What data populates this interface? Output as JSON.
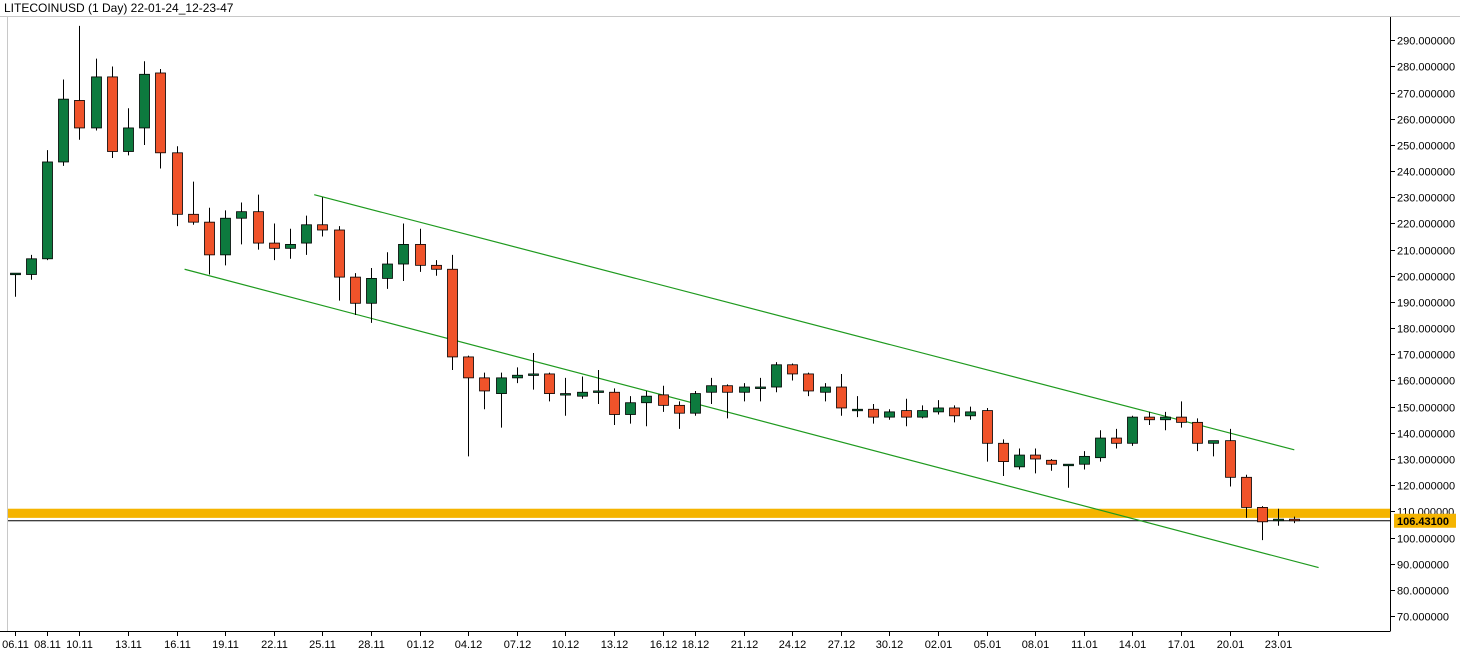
{
  "window": {
    "title": "LITECOINUSD (1 Day) 22-01-24_12-23-47"
  },
  "colors": {
    "up": "#0d7a3e",
    "down": "#f0532a",
    "channel": "#1e9a1e",
    "highlight_band": "#f5b400",
    "axis": "#000000",
    "background": "#ffffff"
  },
  "chart_data": {
    "type": "candlestick",
    "title": "LITECOINUSD (1 Day) 22-01-24_12-23-47",
    "ylim": [
      63,
      304
    ],
    "y_ticks": [
      70,
      80,
      90,
      100,
      110,
      120,
      130,
      140,
      150,
      160,
      170,
      180,
      190,
      200,
      210,
      220,
      230,
      240,
      250,
      260,
      270,
      280,
      290
    ],
    "y_tick_labels": [
      "70.000000",
      "80.000000",
      "90.000000",
      "100.000000",
      "110.000000",
      "120.000000",
      "130.000000",
      "140.000000",
      "150.000000",
      "160.000000",
      "170.000000",
      "180.000000",
      "190.000000",
      "200.000000",
      "210.000000",
      "220.000000",
      "230.000000",
      "240.000000",
      "250.000000",
      "260.000000",
      "270.000000",
      "280.000000",
      "290.000000"
    ],
    "x_labels": [
      {
        "i": 0,
        "text": "06.11"
      },
      {
        "i": 2,
        "text": "08.11"
      },
      {
        "i": 4,
        "text": "10.11"
      },
      {
        "i": 7,
        "text": "13.11"
      },
      {
        "i": 10,
        "text": "16.11"
      },
      {
        "i": 13,
        "text": "19.11"
      },
      {
        "i": 16,
        "text": "22.11"
      },
      {
        "i": 19,
        "text": "25.11"
      },
      {
        "i": 22,
        "text": "28.11"
      },
      {
        "i": 25,
        "text": "01.12"
      },
      {
        "i": 28,
        "text": "04.12"
      },
      {
        "i": 31,
        "text": "07.12"
      },
      {
        "i": 34,
        "text": "10.12"
      },
      {
        "i": 37,
        "text": "13.12"
      },
      {
        "i": 40,
        "text": "16.12"
      },
      {
        "i": 42,
        "text": "18.12"
      },
      {
        "i": 45,
        "text": "21.12"
      },
      {
        "i": 48,
        "text": "24.12"
      },
      {
        "i": 51,
        "text": "27.12"
      },
      {
        "i": 54,
        "text": "30.12"
      },
      {
        "i": 57,
        "text": "02.01"
      },
      {
        "i": 60,
        "text": "05.01"
      },
      {
        "i": 63,
        "text": "08.01"
      },
      {
        "i": 66,
        "text": "11.01"
      },
      {
        "i": 69,
        "text": "14.01"
      },
      {
        "i": 72,
        "text": "17.01"
      },
      {
        "i": 75,
        "text": "20.01"
      },
      {
        "i": 78,
        "text": "23.01"
      }
    ],
    "candles": [
      {
        "o": 200.5,
        "h": 201.0,
        "l": 192.0,
        "c": 201.0
      },
      {
        "o": 200.5,
        "h": 208.0,
        "l": 198.5,
        "c": 206.5
      },
      {
        "o": 206.5,
        "h": 248.0,
        "l": 206.0,
        "c": 243.5
      },
      {
        "o": 243.5,
        "h": 275.0,
        "l": 242.0,
        "c": 267.5
      },
      {
        "o": 267.0,
        "h": 295.5,
        "l": 252.0,
        "c": 256.5
      },
      {
        "o": 256.5,
        "h": 283.0,
        "l": 255.5,
        "c": 276.0
      },
      {
        "o": 276.0,
        "h": 280.0,
        "l": 245.0,
        "c": 247.5
      },
      {
        "o": 247.5,
        "h": 264.0,
        "l": 246.0,
        "c": 256.5
      },
      {
        "o": 256.5,
        "h": 282.0,
        "l": 250.0,
        "c": 277.0
      },
      {
        "o": 277.5,
        "h": 279.0,
        "l": 241.0,
        "c": 247.0
      },
      {
        "o": 247.0,
        "h": 249.5,
        "l": 219.0,
        "c": 223.5
      },
      {
        "o": 223.5,
        "h": 236.0,
        "l": 219.5,
        "c": 220.5
      },
      {
        "o": 220.5,
        "h": 226.0,
        "l": 200.5,
        "c": 208.0
      },
      {
        "o": 208.0,
        "h": 225.0,
        "l": 204.0,
        "c": 222.0
      },
      {
        "o": 222.0,
        "h": 228.0,
        "l": 212.0,
        "c": 224.5
      },
      {
        "o": 224.5,
        "h": 231.0,
        "l": 210.0,
        "c": 212.5
      },
      {
        "o": 212.5,
        "h": 220.0,
        "l": 206.0,
        "c": 210.5
      },
      {
        "o": 210.5,
        "h": 218.0,
        "l": 206.5,
        "c": 212.0
      },
      {
        "o": 212.5,
        "h": 223.0,
        "l": 208.0,
        "c": 219.5
      },
      {
        "o": 219.5,
        "h": 230.0,
        "l": 215.0,
        "c": 217.5
      },
      {
        "o": 217.5,
        "h": 219.0,
        "l": 190.5,
        "c": 199.5
      },
      {
        "o": 199.5,
        "h": 201.0,
        "l": 185.0,
        "c": 189.5
      },
      {
        "o": 189.5,
        "h": 203.0,
        "l": 182.0,
        "c": 199.0
      },
      {
        "o": 199.0,
        "h": 209.0,
        "l": 195.0,
        "c": 204.5
      },
      {
        "o": 204.5,
        "h": 220.0,
        "l": 198.0,
        "c": 212.0
      },
      {
        "o": 212.0,
        "h": 218.0,
        "l": 201.5,
        "c": 204.0
      },
      {
        "o": 204.0,
        "h": 206.0,
        "l": 200.0,
        "c": 202.5
      },
      {
        "o": 202.5,
        "h": 208.0,
        "l": 164.0,
        "c": 169.0
      },
      {
        "o": 169.0,
        "h": 169.5,
        "l": 131.0,
        "c": 161.0
      },
      {
        "o": 161.0,
        "h": 163.0,
        "l": 149.0,
        "c": 156.0
      },
      {
        "o": 155.0,
        "h": 163.0,
        "l": 142.0,
        "c": 161.0
      },
      {
        "o": 161.0,
        "h": 165.0,
        "l": 159.0,
        "c": 162.0
      },
      {
        "o": 162.0,
        "h": 170.5,
        "l": 156.5,
        "c": 162.5
      },
      {
        "o": 162.5,
        "h": 163.0,
        "l": 152.0,
        "c": 155.0
      },
      {
        "o": 155.0,
        "h": 161.0,
        "l": 146.5,
        "c": 155.0
      },
      {
        "o": 154.0,
        "h": 161.5,
        "l": 153.0,
        "c": 155.5
      },
      {
        "o": 155.5,
        "h": 164.0,
        "l": 151.0,
        "c": 156.0
      },
      {
        "o": 155.5,
        "h": 157.0,
        "l": 143.0,
        "c": 147.0
      },
      {
        "o": 147.0,
        "h": 154.0,
        "l": 143.5,
        "c": 151.5
      },
      {
        "o": 151.5,
        "h": 156.0,
        "l": 142.5,
        "c": 154.0
      },
      {
        "o": 154.5,
        "h": 158.0,
        "l": 148.0,
        "c": 150.5
      },
      {
        "o": 150.5,
        "h": 152.0,
        "l": 141.5,
        "c": 147.5
      },
      {
        "o": 147.5,
        "h": 156.0,
        "l": 146.5,
        "c": 155.0
      },
      {
        "o": 155.5,
        "h": 161.0,
        "l": 151.0,
        "c": 158.0
      },
      {
        "o": 158.0,
        "h": 158.5,
        "l": 145.5,
        "c": 155.5
      },
      {
        "o": 155.5,
        "h": 159.0,
        "l": 152.0,
        "c": 157.5
      },
      {
        "o": 157.0,
        "h": 161.0,
        "l": 152.0,
        "c": 157.5
      },
      {
        "o": 157.5,
        "h": 167.0,
        "l": 155.5,
        "c": 166.0
      },
      {
        "o": 166.0,
        "h": 166.5,
        "l": 160.0,
        "c": 162.5
      },
      {
        "o": 162.5,
        "h": 163.0,
        "l": 154.0,
        "c": 156.0
      },
      {
        "o": 155.5,
        "h": 159.0,
        "l": 152.0,
        "c": 157.5
      },
      {
        "o": 157.5,
        "h": 162.5,
        "l": 146.5,
        "c": 149.5
      },
      {
        "o": 149.0,
        "h": 154.0,
        "l": 146.0,
        "c": 149.0
      },
      {
        "o": 149.0,
        "h": 151.0,
        "l": 143.5,
        "c": 146.0
      },
      {
        "o": 146.0,
        "h": 149.0,
        "l": 145.0,
        "c": 148.0
      },
      {
        "o": 148.5,
        "h": 153.0,
        "l": 142.5,
        "c": 146.0
      },
      {
        "o": 146.0,
        "h": 150.5,
        "l": 145.5,
        "c": 148.5
      },
      {
        "o": 148.0,
        "h": 152.5,
        "l": 147.0,
        "c": 149.5
      },
      {
        "o": 149.5,
        "h": 150.5,
        "l": 144.0,
        "c": 146.5
      },
      {
        "o": 146.5,
        "h": 150.0,
        "l": 145.0,
        "c": 148.0
      },
      {
        "o": 148.5,
        "h": 149.5,
        "l": 129.0,
        "c": 136.0
      },
      {
        "o": 136.0,
        "h": 137.5,
        "l": 123.5,
        "c": 129.0
      },
      {
        "o": 127.0,
        "h": 134.0,
        "l": 126.0,
        "c": 131.5
      },
      {
        "o": 131.5,
        "h": 134.0,
        "l": 124.5,
        "c": 130.0
      },
      {
        "o": 129.5,
        "h": 130.0,
        "l": 125.5,
        "c": 128.0
      },
      {
        "o": 127.5,
        "h": 128.0,
        "l": 119.0,
        "c": 128.0
      },
      {
        "o": 128.0,
        "h": 133.0,
        "l": 126.0,
        "c": 131.0
      },
      {
        "o": 130.5,
        "h": 141.0,
        "l": 129.0,
        "c": 138.0
      },
      {
        "o": 138.0,
        "h": 141.5,
        "l": 134.0,
        "c": 136.0
      },
      {
        "o": 136.0,
        "h": 146.5,
        "l": 135.0,
        "c": 146.0
      },
      {
        "o": 146.0,
        "h": 148.0,
        "l": 143.0,
        "c": 145.0
      },
      {
        "o": 145.0,
        "h": 148.0,
        "l": 141.0,
        "c": 146.0
      },
      {
        "o": 146.0,
        "h": 152.0,
        "l": 142.0,
        "c": 144.0
      },
      {
        "o": 144.0,
        "h": 145.5,
        "l": 133.0,
        "c": 136.0
      },
      {
        "o": 136.0,
        "h": 137.0,
        "l": 131.0,
        "c": 137.0
      },
      {
        "o": 137.0,
        "h": 141.5,
        "l": 119.5,
        "c": 123.0
      },
      {
        "o": 123.0,
        "h": 124.0,
        "l": 107.5,
        "c": 111.5
      },
      {
        "o": 111.5,
        "h": 112.0,
        "l": 99.0,
        "c": 106.0
      },
      {
        "o": 106.5,
        "h": 111.0,
        "l": 104.5,
        "c": 107.0
      },
      {
        "o": 107.0,
        "h": 108.0,
        "l": 105.5,
        "c": 106.4
      }
    ],
    "channel_lines": [
      {
        "name": "upper",
        "from": {
          "i": 18.5,
          "y": 231.0
        },
        "to": {
          "i": 79.0,
          "y": 133.5
        }
      },
      {
        "name": "lower",
        "from": {
          "i": 10.5,
          "y": 202.5
        },
        "to": {
          "i": 80.5,
          "y": 88.5
        }
      }
    ],
    "highlight_band": {
      "from": 107.5,
      "to": 111.0
    },
    "price_level": 106.4,
    "current_price_label": "106.43100"
  }
}
